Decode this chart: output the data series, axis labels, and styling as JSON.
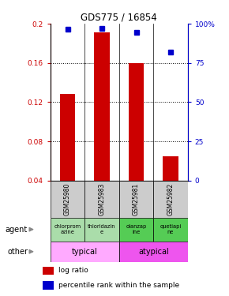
{
  "title": "GDS775 / 16854",
  "samples": [
    "GSM25980",
    "GSM25983",
    "GSM25981",
    "GSM25982"
  ],
  "log_ratios": [
    0.128,
    0.191,
    0.16,
    0.065
  ],
  "pct_ranks": [
    0.965,
    0.968,
    0.945,
    0.82
  ],
  "ylim_left": [
    0.04,
    0.2
  ],
  "yticks_left": [
    0.04,
    0.08,
    0.12,
    0.16,
    0.2
  ],
  "ytick_labels_left": [
    "0.04",
    "0.08",
    "0.12",
    "0.16",
    "0.2"
  ],
  "yticks_right": [
    0.0,
    0.25,
    0.5,
    0.75,
    1.0
  ],
  "ytick_labels_right": [
    "0",
    "25",
    "50",
    "75",
    "100%"
  ],
  "bar_color": "#cc0000",
  "dot_color": "#0000cc",
  "bar_bottom": 0.04,
  "agents": [
    "chlorprom\nazine",
    "thioridazin\ne",
    "olanzap\nine",
    "quetiapi\nne"
  ],
  "agent_colors": [
    "#aaddaa",
    "#aaddaa",
    "#55cc55",
    "#55cc55"
  ],
  "typical_label": "typical",
  "atypical_label": "atypical",
  "typical_color": "#ffaaff",
  "atypical_color": "#ee55ee",
  "sample_bg_color": "#cccccc",
  "left_axis_color": "#cc0000",
  "right_axis_color": "#0000cc",
  "legend_bar_label": "log ratio",
  "legend_dot_label": "percentile rank within the sample"
}
